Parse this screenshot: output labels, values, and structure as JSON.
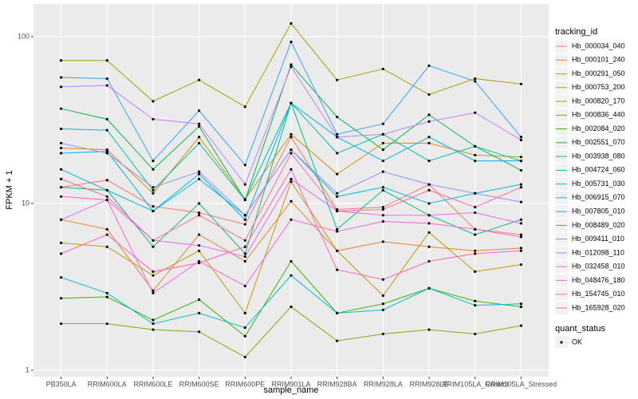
{
  "chart_data": {
    "type": "line",
    "x_label": "sample_name",
    "y_label": "FPKM + 1",
    "log_y": true,
    "grid": true,
    "legend_title": "tracking_id",
    "shape_legend_title": "quant_status",
    "shape_legend_entries": [
      "OK"
    ],
    "categories": [
      "PB350LA",
      "RRIM600LA",
      "RRIM600LE",
      "RRIM600SE",
      "RRIM600PE",
      "RRIM901LA",
      "RRIM928BA",
      "RRIM928LA",
      "RRIM928LE",
      "RRIM105LA_Control",
      "RRIM105LA_Stressed"
    ],
    "ylim": [
      0.915,
      157
    ],
    "yticks": [
      1,
      10,
      100
    ],
    "series": [
      {
        "name": "Hb_000034_040",
        "color": "#F8766D",
        "values": [
          12.5,
          13.8,
          9.6,
          8.8,
          7.5,
          25,
          9.2,
          9.5,
          13,
          7,
          6.5
        ]
      },
      {
        "name": "Hb_000101_240",
        "color": "#EA8331",
        "values": [
          8,
          7,
          3,
          6.5,
          4.5,
          10.3,
          5.2,
          5.9,
          5.5,
          5.2,
          5.4
        ]
      },
      {
        "name": "Hb_000291_050",
        "color": "#D89000",
        "values": [
          21.5,
          21,
          11.5,
          25,
          10.6,
          26,
          15,
          23,
          23,
          19.5,
          19
        ]
      },
      {
        "name": "Hb_000753_200",
        "color": "#C09B00",
        "values": [
          5.8,
          5.5,
          3.7,
          5.2,
          2.2,
          13.5,
          5.2,
          2.8,
          6.7,
          3.9,
          4.3
        ]
      },
      {
        "name": "Hb_000820_170",
        "color": "#A3A500",
        "values": [
          72,
          72,
          41,
          55,
          38,
          120,
          55,
          64,
          45,
          56,
          52
        ]
      },
      {
        "name": "Hb_000836_440",
        "color": "#7CAE00",
        "values": [
          1.9,
          1.9,
          1.75,
          1.7,
          1.2,
          2.4,
          1.5,
          1.65,
          1.75,
          1.65,
          1.85
        ]
      },
      {
        "name": "Hb_002084_020",
        "color": "#39B600",
        "values": [
          2.7,
          2.75,
          2,
          2.65,
          1.6,
          4.5,
          2.2,
          2.5,
          3.1,
          2.6,
          2.4
        ]
      },
      {
        "name": "Hb_002551_070",
        "color": "#00BB4E",
        "values": [
          37,
          32,
          16,
          29,
          10.5,
          68,
          33,
          21,
          34,
          22,
          15.8
        ]
      },
      {
        "name": "Hb_003938_080",
        "color": "#00BF7D",
        "values": [
          12.5,
          12,
          5.5,
          10,
          5,
          40,
          7,
          12,
          8.5,
          6.5,
          8
        ]
      },
      {
        "name": "Hb_004724_060",
        "color": "#00C1A3",
        "values": [
          28,
          27.5,
          12,
          23,
          10.5,
          40,
          20,
          26,
          18,
          22,
          18
        ]
      },
      {
        "name": "Hb_005731_030",
        "color": "#00BFC4",
        "values": [
          3.6,
          2.9,
          1.9,
          2.2,
          1.8,
          3.7,
          2.2,
          2.3,
          3.1,
          2.45,
          2.5
        ]
      },
      {
        "name": "Hb_006915_070",
        "color": "#00BAE0",
        "values": [
          16,
          12,
          9,
          14,
          8.5,
          21,
          11,
          12.5,
          10,
          11.5,
          13
        ]
      },
      {
        "name": "Hb_007805_010",
        "color": "#00B0F6",
        "values": [
          20,
          20.5,
          9,
          15,
          8,
          40,
          25,
          18,
          25,
          18,
          18
        ]
      },
      {
        "name": "Hb_008489_020",
        "color": "#35A2FF",
        "values": [
          57,
          56,
          18,
          36,
          17,
          93,
          26,
          30,
          67,
          54,
          25
        ]
      },
      {
        "name": "Hb_009411_010",
        "color": "#9590FF",
        "values": [
          23,
          20,
          12.5,
          15.5,
          8.5,
          21,
          11.5,
          15.5,
          13,
          11.5,
          10.2
        ]
      },
      {
        "name": "Hb_012098_110",
        "color": "#C77CFF",
        "values": [
          50,
          51,
          32,
          30,
          13,
          66,
          25,
          26,
          31,
          35,
          24
        ]
      },
      {
        "name": "Hb_032458_010",
        "color": "#E76BF3",
        "values": [
          8,
          10.5,
          6,
          5.6,
          4.8,
          14,
          9,
          8.5,
          8.5,
          8.8,
          7.6
        ]
      },
      {
        "name": "Hb_048476_180",
        "color": "#FA62DB",
        "values": [
          11,
          10.5,
          2.9,
          4.5,
          3.2,
          8,
          6.8,
          7.8,
          7.6,
          7,
          6.3
        ]
      },
      {
        "name": "Hb_154745_010",
        "color": "#FF62BC",
        "values": [
          5,
          6.5,
          3.9,
          4.4,
          5.5,
          16,
          4,
          3.5,
          4.5,
          5,
          5.2
        ]
      },
      {
        "name": "Hb_165928_020",
        "color": "#FF6C91",
        "values": [
          14,
          11,
          6,
          8.5,
          6,
          20,
          9,
          9.2,
          12,
          9.5,
          12.5
        ]
      }
    ]
  }
}
